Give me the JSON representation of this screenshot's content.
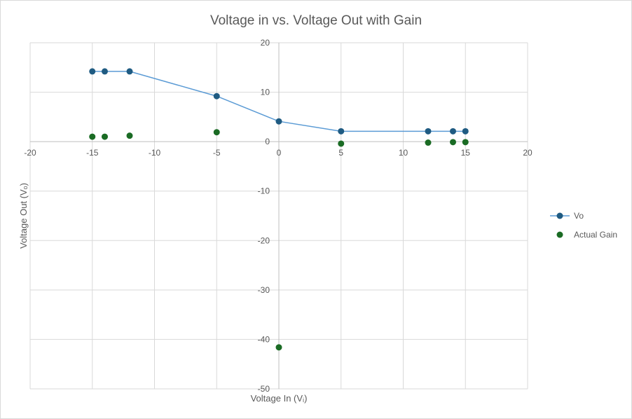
{
  "chart_data": {
    "type": "scatter",
    "title": "Voltage in vs. Voltage Out with Gain",
    "xlabel": "Voltage In (Vᵢ)",
    "ylabel": "Voltage Out (Vₒ)",
    "xlim": [
      -20,
      20
    ],
    "ylim": [
      -50,
      20
    ],
    "xticks": [
      -20,
      -15,
      -10,
      -5,
      0,
      5,
      10,
      15,
      20
    ],
    "yticks": [
      20,
      10,
      0,
      -10,
      -20,
      -30,
      -40,
      -50
    ],
    "grid": true,
    "legend_position": "right",
    "series": [
      {
        "name": "Vo",
        "style": "line-markers",
        "color": "#1f5b82",
        "line_color": "#5b9bd5",
        "x": [
          -15,
          -14,
          -12,
          -5,
          0,
          5,
          12,
          14,
          15
        ],
        "y": [
          14.2,
          14.2,
          14.2,
          9.2,
          4.1,
          2.1,
          2.1,
          2.1,
          2.1
        ]
      },
      {
        "name": "Actual Gain",
        "style": "markers",
        "color": "#1a6b24",
        "x": [
          -15,
          -14,
          -12,
          -5,
          0,
          5,
          12,
          14,
          15
        ],
        "y": [
          1.0,
          1.0,
          1.2,
          1.9,
          -41.6,
          -0.4,
          -0.2,
          -0.1,
          -0.1
        ]
      }
    ]
  }
}
